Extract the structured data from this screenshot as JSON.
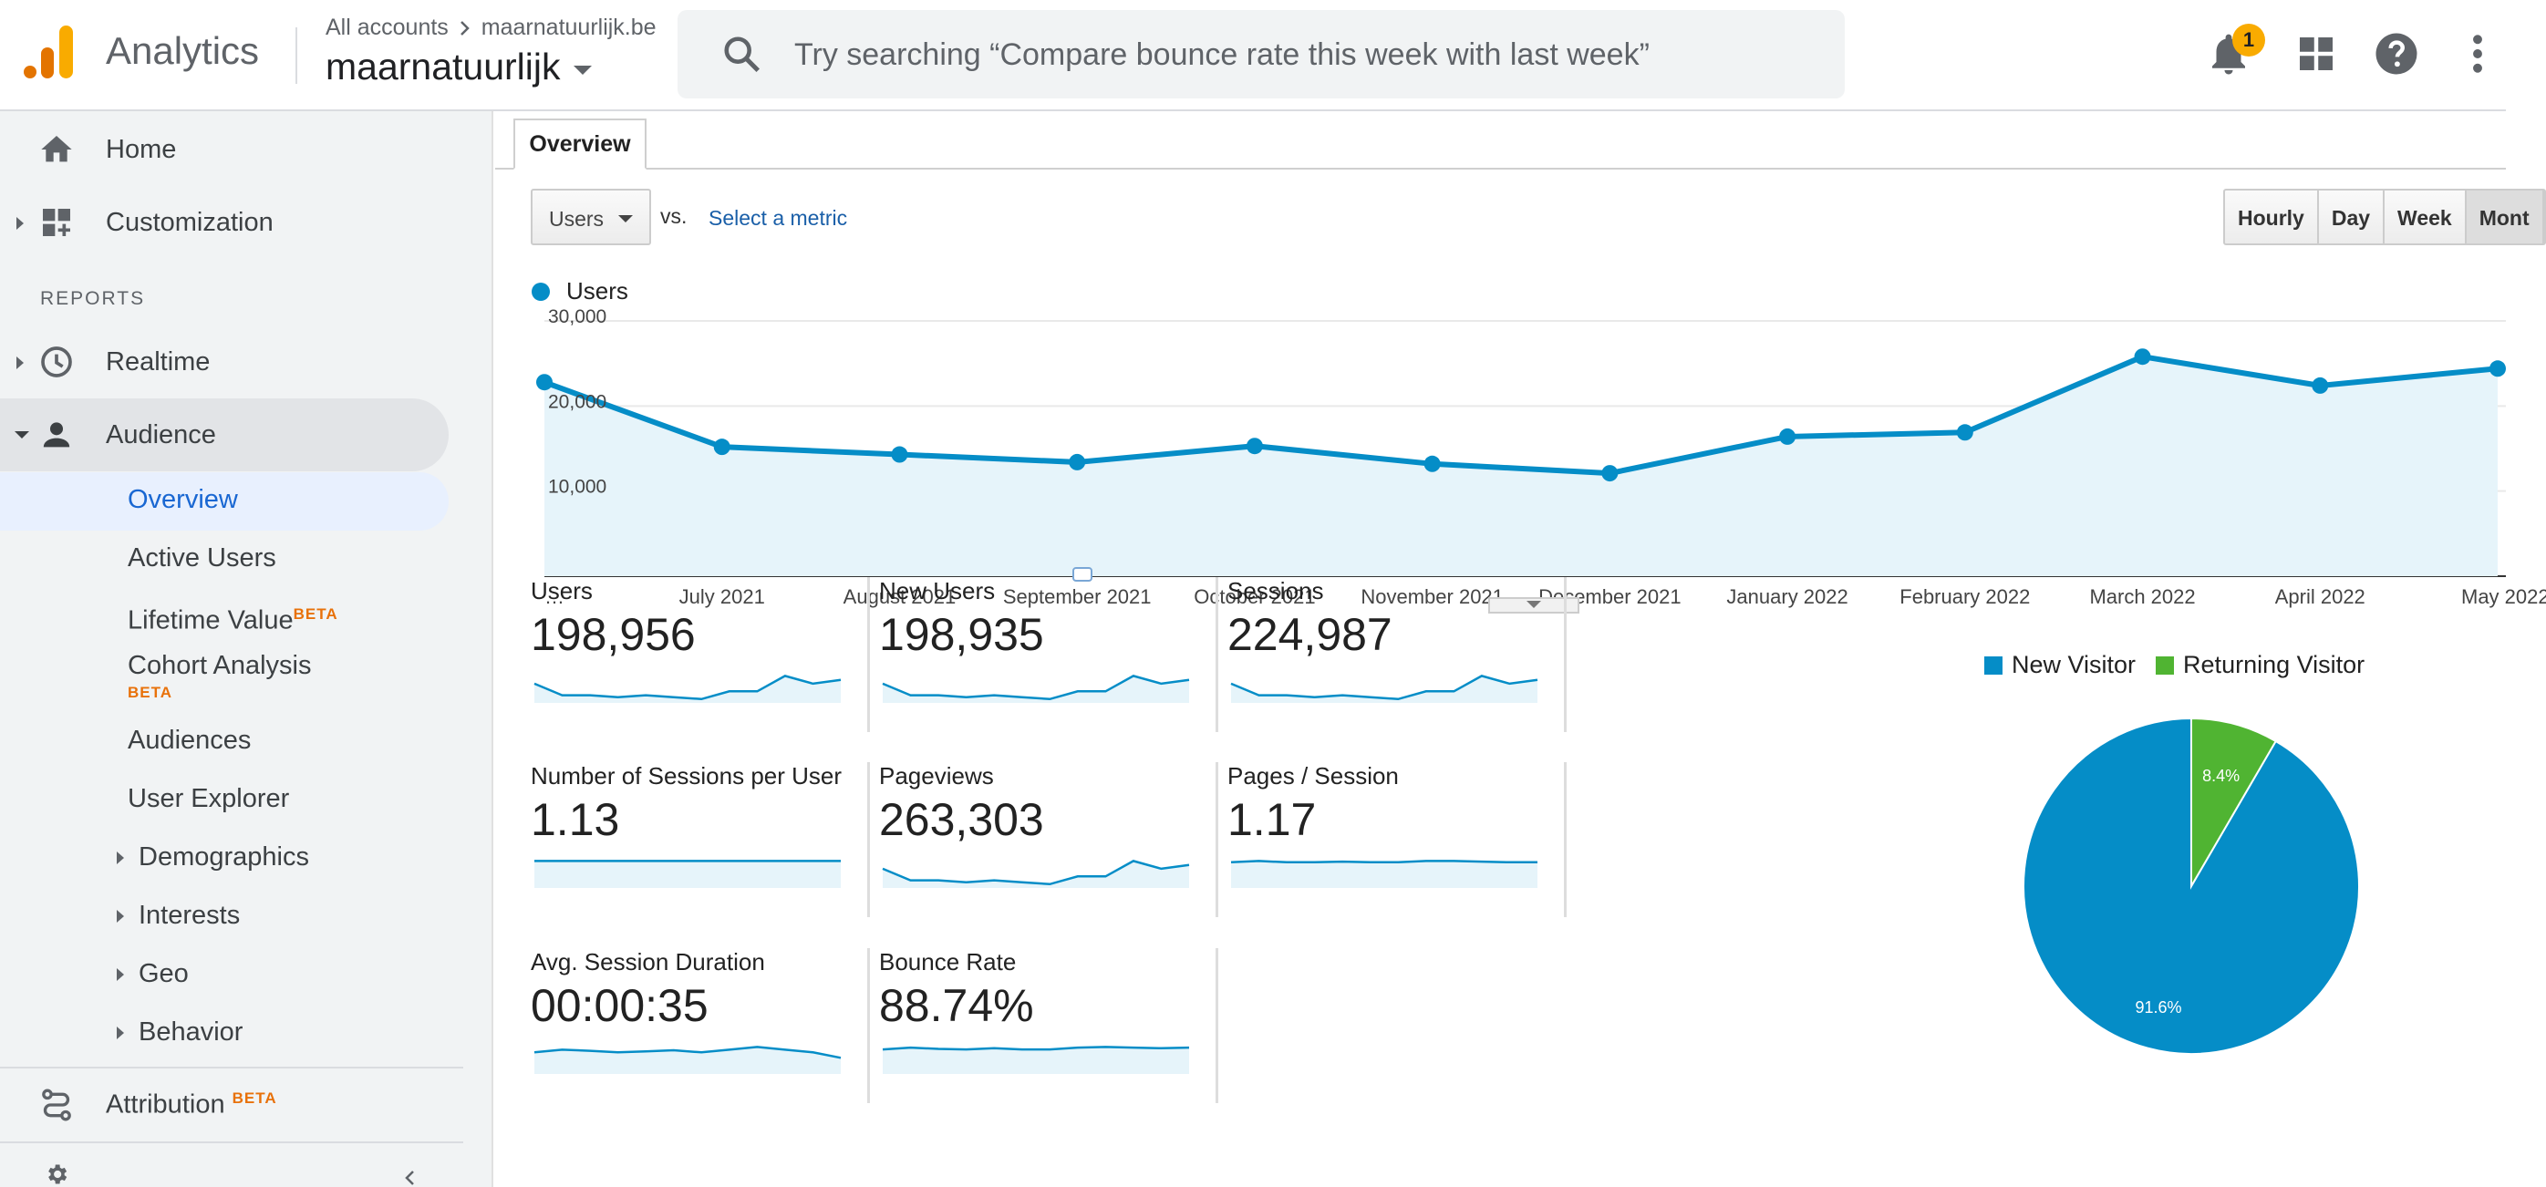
{
  "header": {
    "app_name": "Analytics",
    "crumb_root": "All accounts",
    "crumb_account": "maarnatuurlijk.be",
    "property": "maarnatuurlijk",
    "search_placeholder": "Try searching “Compare bounce rate this week with last week”",
    "notification_count": "1"
  },
  "sidebar": {
    "home": "Home",
    "customization": "Customization",
    "reports_label": "REPORTS",
    "realtime": "Realtime",
    "audience": "Audience",
    "audience_items": [
      {
        "label": "Overview"
      },
      {
        "label": "Active Users"
      },
      {
        "label": "Lifetime Value",
        "badge": "BETA"
      },
      {
        "label": "Cohort Analysis",
        "badge": "BETA"
      },
      {
        "label": "Audiences"
      },
      {
        "label": "User Explorer"
      },
      {
        "label": "Demographics"
      },
      {
        "label": "Interests"
      },
      {
        "label": "Geo"
      },
      {
        "label": "Behavior"
      }
    ],
    "attribution": "Attribution",
    "attribution_badge": "BETA"
  },
  "main": {
    "tab": "Overview",
    "metric": "Users",
    "vs": "vs.",
    "select_metric": "Select a metric",
    "periods": [
      "Hourly",
      "Day",
      "Week",
      "Mont"
    ],
    "series_label": "Users"
  },
  "chart_data": [
    {
      "type": "area",
      "series": [
        {
          "name": "Users",
          "values": [
            22800,
            15200,
            14300,
            13400,
            15300,
            13200,
            12100,
            16400,
            16900,
            25800,
            22400,
            24400
          ]
        }
      ],
      "categories": [
        "…",
        "July 2021",
        "August 2021",
        "September 2021",
        "October 2021",
        "November 2021",
        "December 2021",
        "January 2022",
        "February 2022",
        "March 2022",
        "April 2022",
        "May 2022"
      ],
      "y_ticks": [
        "30,000",
        "20,000",
        "10,000"
      ],
      "ylim": [
        0,
        30000
      ],
      "color": "#058dc7"
    },
    {
      "type": "pie",
      "labels": [
        "New Visitor",
        "Returning Visitor"
      ],
      "values": [
        91.6,
        8.4
      ],
      "value_labels": [
        "91.6%",
        "8.4%"
      ],
      "colors": [
        "#058dc7",
        "#50b432"
      ]
    }
  ],
  "scorecards": [
    {
      "title": "Users",
      "value": "198,956",
      "spark": [
        5,
        2,
        2,
        1.5,
        2,
        1.5,
        1,
        3,
        3,
        7,
        5,
        6
      ]
    },
    {
      "title": "New Users",
      "value": "198,935",
      "spark": [
        5,
        2,
        2,
        1.5,
        2,
        1.5,
        1,
        3,
        3,
        7,
        5,
        6
      ]
    },
    {
      "title": "Sessions",
      "value": "224,987",
      "spark": [
        5,
        2,
        2,
        1.5,
        2,
        1.5,
        1,
        3,
        3,
        7,
        5,
        6
      ]
    },
    {
      "title": "Number of Sessions per User",
      "value": "1.13",
      "spark": [
        4,
        4,
        4,
        4,
        4,
        4,
        4,
        4,
        4,
        4,
        4,
        4
      ]
    },
    {
      "title": "Pageviews",
      "value": "263,303",
      "spark": [
        5,
        2,
        2,
        1.5,
        2,
        1.5,
        1,
        3,
        3,
        7,
        5,
        6
      ]
    },
    {
      "title": "Pages / Session",
      "value": "1.17",
      "spark": [
        4,
        4.2,
        4,
        4,
        4.1,
        4,
        4,
        4.2,
        4.2,
        4.1,
        4,
        4
      ]
    },
    {
      "title": "Avg. Session Duration",
      "value": "00:00:35",
      "spark": [
        4,
        4.5,
        4.3,
        4,
        4.2,
        4.4,
        4,
        4.5,
        5,
        4.5,
        4,
        3
      ]
    },
    {
      "title": "Bounce Rate",
      "value": "88.74%",
      "spark": [
        4,
        4.3,
        4.1,
        4,
        4.2,
        4,
        4,
        4.3,
        4.4,
        4.3,
        4.2,
        4.3
      ]
    }
  ]
}
